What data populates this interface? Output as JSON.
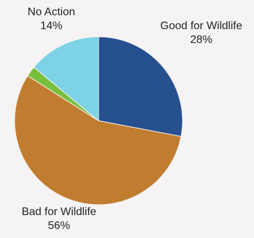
{
  "chart_data": {
    "type": "pie",
    "title": "",
    "start_angle_deg": 0,
    "direction": "clockwise",
    "slices": [
      {
        "label": "Good for Wildlife",
        "percent_text": "28%",
        "value": 28,
        "color": "#26508e"
      },
      {
        "label": "Bad for Wildlife",
        "percent_text": "56%",
        "value": 56,
        "color": "#c07d30"
      },
      {
        "label": "",
        "percent_text": "",
        "value": 2,
        "color": "#79bf3c"
      },
      {
        "label": "No Action",
        "percent_text": "14%",
        "value": 14,
        "color": "#7dd2e6"
      }
    ],
    "legend": "none"
  }
}
